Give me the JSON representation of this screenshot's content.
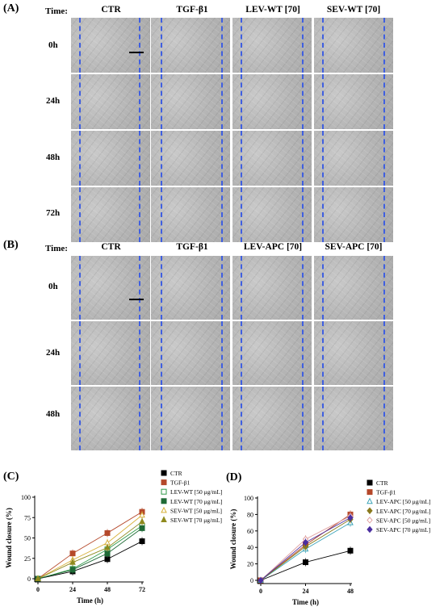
{
  "panelA": {
    "letter": "(A)",
    "time_label": "Time:",
    "columns": [
      "CTR",
      "TGF-β1",
      "LEV-WT [70]",
      "SEV-WT [70]"
    ],
    "rows": [
      "0h",
      "24h",
      "48h",
      "72h"
    ]
  },
  "panelB": {
    "letter": "(B)",
    "time_label": "Time:",
    "columns": [
      "CTR",
      "TGF-β1",
      "LEV-APC [70]",
      "SEV-APC [70]"
    ],
    "rows": [
      "0h",
      "24h",
      "48h"
    ]
  },
  "line_color": "#3f5fe0",
  "chart_data": [
    {
      "panel": "(C)",
      "type": "line",
      "xlabel": "Time (h)",
      "ylabel": "Wound closure (%)",
      "x": [
        0,
        24,
        48,
        72
      ],
      "xticks": [
        0,
        24,
        48,
        72
      ],
      "xlim": [
        0,
        72
      ],
      "ylim": [
        0,
        100
      ],
      "yticks": [
        0,
        25,
        50,
        75,
        100
      ],
      "legend_position": "top-right",
      "series": [
        {
          "name": "CTR",
          "color": "#000000",
          "marker": "square-filled",
          "values": [
            0,
            9,
            24,
            46
          ]
        },
        {
          "name": "TGF-β1",
          "color": "#b5482a",
          "marker": "square-filled",
          "values": [
            0,
            31,
            56,
            82
          ]
        },
        {
          "name": "LEV-WT [50 μg/mL]",
          "color": "#2f9a48",
          "marker": "square-open",
          "values": [
            0,
            12,
            36,
            65
          ]
        },
        {
          "name": "LEV-WT [70 μg/mL]",
          "color": "#1f6a36",
          "marker": "square-filled",
          "values": [
            0,
            11,
            31,
            62
          ]
        },
        {
          "name": "SEV-WT [50 μg/mL]",
          "color": "#d7b03a",
          "marker": "triangle-open",
          "values": [
            0,
            23,
            44,
            78
          ]
        },
        {
          "name": "SEV-WT [70 μg/mL]",
          "color": "#8f8a1e",
          "marker": "triangle-filled",
          "values": [
            0,
            20,
            38,
            70
          ]
        }
      ]
    },
    {
      "panel": "(D)",
      "type": "line",
      "xlabel": "Time (h)",
      "ylabel": "Wound closure (%)",
      "x": [
        0,
        24,
        48
      ],
      "xticks": [
        0,
        24,
        48
      ],
      "xlim": [
        0,
        48
      ],
      "ylim": [
        0,
        100
      ],
      "yticks": [
        0,
        20,
        40,
        60,
        80,
        100
      ],
      "legend_position": "top-right",
      "series": [
        {
          "name": "CTR",
          "color": "#000000",
          "marker": "square-filled",
          "values": [
            0,
            22,
            36
          ]
        },
        {
          "name": "TGF-β1",
          "color": "#b5482a",
          "marker": "square-filled",
          "values": [
            0,
            43,
            80
          ]
        },
        {
          "name": "LEV-APC [50 μg/mL]",
          "color": "#3aa3b8",
          "marker": "triangle-open",
          "values": [
            0,
            38,
            70
          ]
        },
        {
          "name": "LEV-APC [70 μg/mL]",
          "color": "#8a7a1e",
          "marker": "diamond-filled",
          "values": [
            0,
            41,
            74
          ]
        },
        {
          "name": "SEV-APC [50 μg/mL]",
          "color": "#e0a0a0",
          "marker": "diamond-open",
          "values": [
            0,
            50,
            78
          ]
        },
        {
          "name": "SEV-APC [70 μg/mL]",
          "color": "#4b2fa0",
          "marker": "diamond-filled",
          "values": [
            0,
            46,
            76
          ]
        }
      ]
    }
  ]
}
